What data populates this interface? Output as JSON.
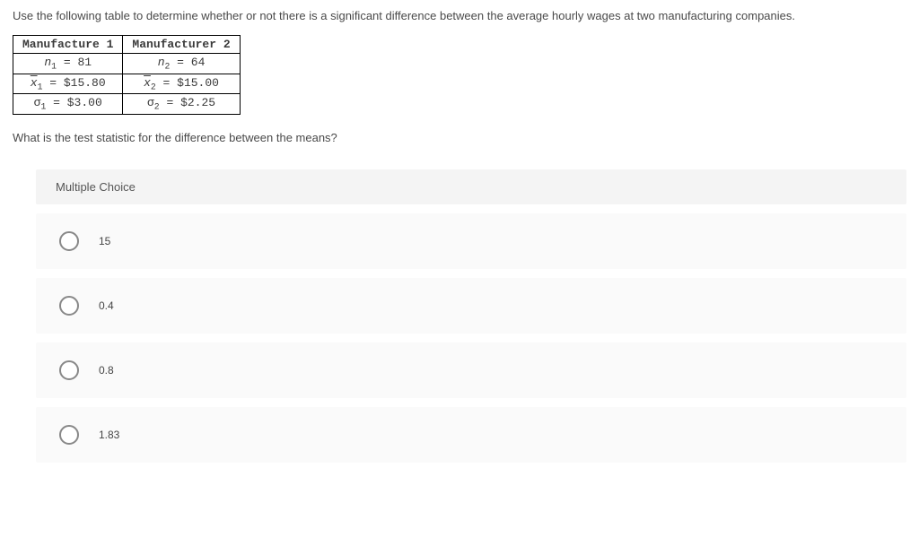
{
  "question": {
    "intro": "Use the following table to determine whether or not there is a significant difference between the average hourly wages at two manufacturing companies.",
    "prompt": "What is the test statistic for the difference between the means?"
  },
  "table": {
    "headers": [
      "Manufacture 1",
      "Manufacturer 2"
    ],
    "rows": [
      {
        "c1_var": "n",
        "c1_sub": "1",
        "c1_val": "81",
        "c2_var": "n",
        "c2_sub": "2",
        "c2_val": "64"
      },
      {
        "c1_var": "x",
        "c1_sub": "1",
        "c1_val": "$15.80",
        "c2_var": "x",
        "c2_sub": "2",
        "c2_val": "$15.00",
        "overline": true
      },
      {
        "c1_var": "σ",
        "c1_sub": "1",
        "c1_val": "$3.00",
        "c2_var": "σ",
        "c2_sub": "2",
        "c2_val": "$2.25"
      }
    ]
  },
  "mc": {
    "label": "Multiple Choice",
    "options": [
      "15",
      "0.4",
      "0.8",
      "1.83"
    ]
  },
  "colors": {
    "page_bg": "#ffffff",
    "text": "#3a3a3a",
    "option_bg": "#fafafa",
    "header_bg": "#f4f4f4",
    "radio_border": "#888888",
    "table_border": "#000000"
  }
}
